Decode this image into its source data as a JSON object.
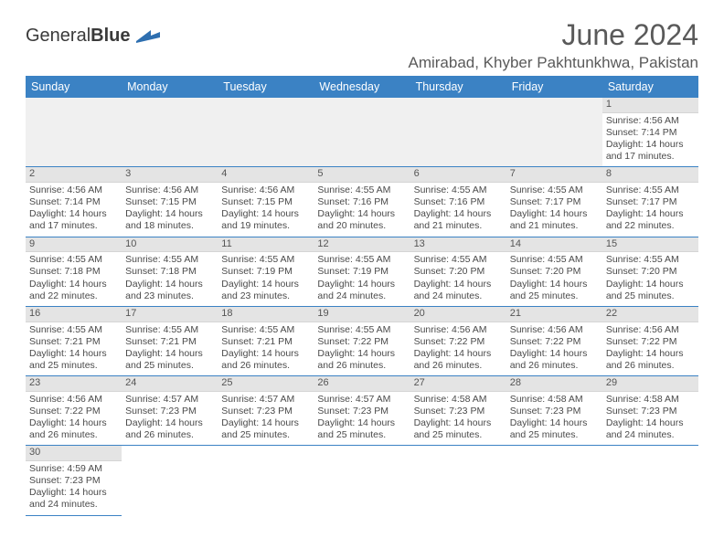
{
  "logo_general": "General",
  "logo_blue": "Blue",
  "title": "June 2024",
  "location": "Amirabad, Khyber Pakhtunkhwa, Pakistan",
  "colors": {
    "header_bg": "#3b82c4",
    "header_text": "#ffffff",
    "daynum_bg": "#e4e4e4",
    "empty_bg": "#f0f0f0",
    "border": "#3b82c4",
    "text": "#4a4a4a"
  },
  "daynames": [
    "Sunday",
    "Monday",
    "Tuesday",
    "Wednesday",
    "Thursday",
    "Friday",
    "Saturday"
  ],
  "weeks": [
    [
      {
        "blank": true
      },
      {
        "blank": true
      },
      {
        "blank": true
      },
      {
        "blank": true
      },
      {
        "blank": true
      },
      {
        "blank": true
      },
      {
        "num": "1",
        "sunrise": "Sunrise: 4:56 AM",
        "sunset": "Sunset: 7:14 PM",
        "daylight": "Daylight: 14 hours and 17 minutes."
      }
    ],
    [
      {
        "num": "2",
        "sunrise": "Sunrise: 4:56 AM",
        "sunset": "Sunset: 7:14 PM",
        "daylight": "Daylight: 14 hours and 17 minutes."
      },
      {
        "num": "3",
        "sunrise": "Sunrise: 4:56 AM",
        "sunset": "Sunset: 7:15 PM",
        "daylight": "Daylight: 14 hours and 18 minutes."
      },
      {
        "num": "4",
        "sunrise": "Sunrise: 4:56 AM",
        "sunset": "Sunset: 7:15 PM",
        "daylight": "Daylight: 14 hours and 19 minutes."
      },
      {
        "num": "5",
        "sunrise": "Sunrise: 4:55 AM",
        "sunset": "Sunset: 7:16 PM",
        "daylight": "Daylight: 14 hours and 20 minutes."
      },
      {
        "num": "6",
        "sunrise": "Sunrise: 4:55 AM",
        "sunset": "Sunset: 7:16 PM",
        "daylight": "Daylight: 14 hours and 21 minutes."
      },
      {
        "num": "7",
        "sunrise": "Sunrise: 4:55 AM",
        "sunset": "Sunset: 7:17 PM",
        "daylight": "Daylight: 14 hours and 21 minutes."
      },
      {
        "num": "8",
        "sunrise": "Sunrise: 4:55 AM",
        "sunset": "Sunset: 7:17 PM",
        "daylight": "Daylight: 14 hours and 22 minutes."
      }
    ],
    [
      {
        "num": "9",
        "sunrise": "Sunrise: 4:55 AM",
        "sunset": "Sunset: 7:18 PM",
        "daylight": "Daylight: 14 hours and 22 minutes."
      },
      {
        "num": "10",
        "sunrise": "Sunrise: 4:55 AM",
        "sunset": "Sunset: 7:18 PM",
        "daylight": "Daylight: 14 hours and 23 minutes."
      },
      {
        "num": "11",
        "sunrise": "Sunrise: 4:55 AM",
        "sunset": "Sunset: 7:19 PM",
        "daylight": "Daylight: 14 hours and 23 minutes."
      },
      {
        "num": "12",
        "sunrise": "Sunrise: 4:55 AM",
        "sunset": "Sunset: 7:19 PM",
        "daylight": "Daylight: 14 hours and 24 minutes."
      },
      {
        "num": "13",
        "sunrise": "Sunrise: 4:55 AM",
        "sunset": "Sunset: 7:20 PM",
        "daylight": "Daylight: 14 hours and 24 minutes."
      },
      {
        "num": "14",
        "sunrise": "Sunrise: 4:55 AM",
        "sunset": "Sunset: 7:20 PM",
        "daylight": "Daylight: 14 hours and 25 minutes."
      },
      {
        "num": "15",
        "sunrise": "Sunrise: 4:55 AM",
        "sunset": "Sunset: 7:20 PM",
        "daylight": "Daylight: 14 hours and 25 minutes."
      }
    ],
    [
      {
        "num": "16",
        "sunrise": "Sunrise: 4:55 AM",
        "sunset": "Sunset: 7:21 PM",
        "daylight": "Daylight: 14 hours and 25 minutes."
      },
      {
        "num": "17",
        "sunrise": "Sunrise: 4:55 AM",
        "sunset": "Sunset: 7:21 PM",
        "daylight": "Daylight: 14 hours and 25 minutes."
      },
      {
        "num": "18",
        "sunrise": "Sunrise: 4:55 AM",
        "sunset": "Sunset: 7:21 PM",
        "daylight": "Daylight: 14 hours and 26 minutes."
      },
      {
        "num": "19",
        "sunrise": "Sunrise: 4:55 AM",
        "sunset": "Sunset: 7:22 PM",
        "daylight": "Daylight: 14 hours and 26 minutes."
      },
      {
        "num": "20",
        "sunrise": "Sunrise: 4:56 AM",
        "sunset": "Sunset: 7:22 PM",
        "daylight": "Daylight: 14 hours and 26 minutes."
      },
      {
        "num": "21",
        "sunrise": "Sunrise: 4:56 AM",
        "sunset": "Sunset: 7:22 PM",
        "daylight": "Daylight: 14 hours and 26 minutes."
      },
      {
        "num": "22",
        "sunrise": "Sunrise: 4:56 AM",
        "sunset": "Sunset: 7:22 PM",
        "daylight": "Daylight: 14 hours and 26 minutes."
      }
    ],
    [
      {
        "num": "23",
        "sunrise": "Sunrise: 4:56 AM",
        "sunset": "Sunset: 7:22 PM",
        "daylight": "Daylight: 14 hours and 26 minutes."
      },
      {
        "num": "24",
        "sunrise": "Sunrise: 4:57 AM",
        "sunset": "Sunset: 7:23 PM",
        "daylight": "Daylight: 14 hours and 26 minutes."
      },
      {
        "num": "25",
        "sunrise": "Sunrise: 4:57 AM",
        "sunset": "Sunset: 7:23 PM",
        "daylight": "Daylight: 14 hours and 25 minutes."
      },
      {
        "num": "26",
        "sunrise": "Sunrise: 4:57 AM",
        "sunset": "Sunset: 7:23 PM",
        "daylight": "Daylight: 14 hours and 25 minutes."
      },
      {
        "num": "27",
        "sunrise": "Sunrise: 4:58 AM",
        "sunset": "Sunset: 7:23 PM",
        "daylight": "Daylight: 14 hours and 25 minutes."
      },
      {
        "num": "28",
        "sunrise": "Sunrise: 4:58 AM",
        "sunset": "Sunset: 7:23 PM",
        "daylight": "Daylight: 14 hours and 25 minutes."
      },
      {
        "num": "29",
        "sunrise": "Sunrise: 4:58 AM",
        "sunset": "Sunset: 7:23 PM",
        "daylight": "Daylight: 14 hours and 24 minutes."
      }
    ],
    [
      {
        "num": "30",
        "sunrise": "Sunrise: 4:59 AM",
        "sunset": "Sunset: 7:23 PM",
        "daylight": "Daylight: 14 hours and 24 minutes."
      },
      {
        "blank": true
      },
      {
        "blank": true
      },
      {
        "blank": true
      },
      {
        "blank": true
      },
      {
        "blank": true
      },
      {
        "blank": true
      }
    ]
  ]
}
